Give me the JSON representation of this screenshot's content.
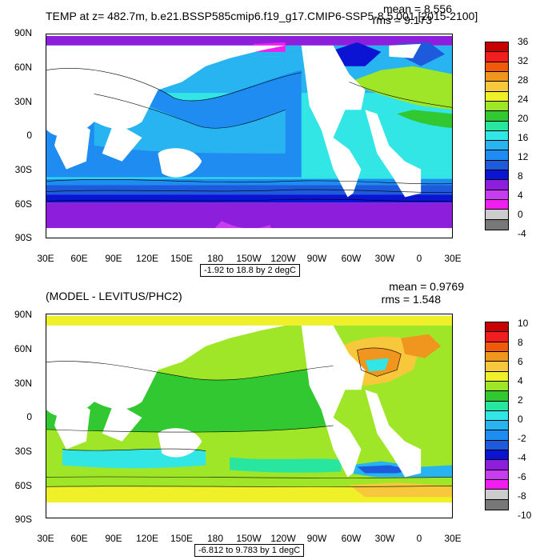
{
  "top_panel": {
    "title": "TEMP at z= 482.7m, b.e21.BSSP585cmip6.f19_g17.CMIP6-SSP5-8.5.001 [2015-2100]",
    "mean_text": "mean = 8.556",
    "rms_text": "rms = 9.173",
    "range_text": "-1.92 to 18.8 by 2 degC",
    "colorbar_labels": [
      "36",
      "32",
      "28",
      "24",
      "20",
      "16",
      "12",
      "8",
      "4",
      "0",
      "-4"
    ],
    "colorbar_colors": [
      "#c80000",
      "#f01e1e",
      "#f05a0a",
      "#f0961e",
      "#f8c83c",
      "#f0f028",
      "#a0e628",
      "#32c832",
      "#28e6a0",
      "#32e6e6",
      "#28b4f0",
      "#1e8cf0",
      "#1e5adc",
      "#0a14d2",
      "#8c1edc",
      "#c83cf0",
      "#f01ef0",
      "#cccccc",
      "#787878"
    ]
  },
  "bottom_panel": {
    "title": "(MODEL - LEVITUS/PHC2)",
    "mean_text": "mean = 0.9769",
    "rms_text": "rms = 1.548",
    "range_text": "-6.812 to 9.783 by 1 degC",
    "colorbar_labels": [
      "10",
      "8",
      "6",
      "4",
      "2",
      "0",
      "-2",
      "-4",
      "-6",
      "-8",
      "-10"
    ],
    "colorbar_colors": [
      "#c80000",
      "#f01e1e",
      "#f05a0a",
      "#f0961e",
      "#f8c83c",
      "#f0f028",
      "#a0e628",
      "#32c832",
      "#28e6a0",
      "#32e6e6",
      "#28b4f0",
      "#1e8cf0",
      "#1e5adc",
      "#0a14d2",
      "#8c1edc",
      "#c83cf0",
      "#f01ef0",
      "#cccccc",
      "#787878"
    ]
  },
  "axes": {
    "lat_labels": [
      "90N",
      "60N",
      "30N",
      "0",
      "30S",
      "60S",
      "90S"
    ],
    "lon_labels": [
      "30E",
      "60E",
      "90E",
      "120E",
      "150E",
      "180",
      "150W",
      "120W",
      "90W",
      "60W",
      "30W",
      "0",
      "30E"
    ]
  },
  "colors": {
    "land": "#ffffff",
    "frame": "#000000"
  }
}
